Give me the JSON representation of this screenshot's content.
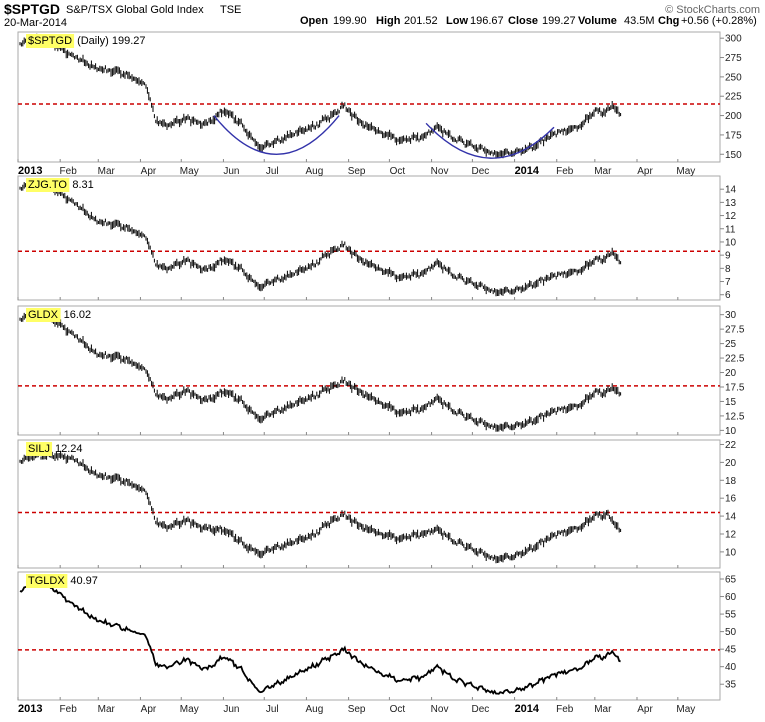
{
  "header": {
    "symbol": "$SPTGD",
    "name": "S&P/TSX Global Gold Index",
    "exchange": "TSE",
    "date": "20-Mar-2014",
    "open_label": "Open",
    "open": "199.90",
    "high_label": "High",
    "high": "201.52",
    "low_label": "Low",
    "low": "196.67",
    "close_label": "Close",
    "close": "199.27",
    "volume_label": "Volume",
    "volume": "43.5M",
    "chg_label": "Chg",
    "chg": "+0.56 (+0.28%)",
    "credit": "© StockCharts.com"
  },
  "colors": {
    "resistance": "#cc0000",
    "arc": "#3333aa",
    "highlight": "#ffff66",
    "price": "#000000"
  },
  "x_axis": {
    "labels": [
      "2013",
      "Feb",
      "Mar",
      "Apr",
      "May",
      "Jun",
      "Jul",
      "Aug",
      "Sep",
      "Oct",
      "Nov",
      "Dec",
      "2014",
      "Feb",
      "Mar",
      "Apr",
      "May"
    ],
    "bold_labels": [
      "2013",
      "2014"
    ]
  },
  "chart_data": [
    {
      "type": "line",
      "panel": "SPTGD",
      "label": "$SPTGD",
      "label_suffix": "(Daily) 199.27",
      "style": "bars",
      "y_ticks": [
        300,
        275,
        250,
        225,
        200,
        175,
        150
      ],
      "ylim": [
        140,
        308
      ],
      "resistance": 215,
      "arcs": [
        {
          "start": "2013-05-25",
          "end": "2013-08-25",
          "from": 200,
          "to": 200,
          "bottom": 150
        },
        {
          "start": "2013-10-28",
          "end": "2014-01-30",
          "from": 190,
          "to": 185,
          "bottom": 145
        }
      ],
      "x": [
        "2013-01-02",
        "2013-01-20",
        "2013-02-10",
        "2013-03-01",
        "2013-03-20",
        "2013-04-05",
        "2013-04-12",
        "2013-04-20",
        "2013-05-05",
        "2013-05-20",
        "2013-06-01",
        "2013-06-15",
        "2013-06-26",
        "2013-07-05",
        "2013-07-20",
        "2013-08-05",
        "2013-08-20",
        "2013-08-28",
        "2013-09-10",
        "2013-09-25",
        "2013-10-10",
        "2013-10-25",
        "2013-11-05",
        "2013-11-20",
        "2013-12-05",
        "2013-12-18",
        "2014-01-01",
        "2014-01-15",
        "2014-02-01",
        "2014-02-15",
        "2014-03-01",
        "2014-03-10",
        "2014-03-14",
        "2014-03-20"
      ],
      "y": [
        295,
        298,
        278,
        260,
        255,
        240,
        195,
        188,
        196,
        188,
        207,
        188,
        160,
        162,
        175,
        185,
        200,
        213,
        190,
        178,
        168,
        172,
        185,
        168,
        158,
        150,
        152,
        160,
        178,
        183,
        205,
        205,
        214,
        199
      ]
    },
    {
      "type": "line",
      "panel": "ZJG",
      "label": "ZJG.TO",
      "label_suffix": "8.31",
      "style": "bars",
      "y_ticks": [
        14,
        13,
        12,
        11,
        10,
        9,
        8,
        7,
        6
      ],
      "ylim": [
        5.6,
        15
      ],
      "resistance": 9.3,
      "x": [
        "2013-01-02",
        "2013-01-20",
        "2013-02-10",
        "2013-03-01",
        "2013-03-20",
        "2013-04-05",
        "2013-04-12",
        "2013-04-20",
        "2013-05-05",
        "2013-05-20",
        "2013-06-01",
        "2013-06-15",
        "2013-06-26",
        "2013-07-05",
        "2013-07-20",
        "2013-08-05",
        "2013-08-20",
        "2013-08-28",
        "2013-09-10",
        "2013-09-25",
        "2013-10-10",
        "2013-10-25",
        "2013-11-05",
        "2013-11-20",
        "2013-12-05",
        "2013-12-18",
        "2014-01-01",
        "2014-01-15",
        "2014-02-01",
        "2014-02-15",
        "2014-03-01",
        "2014-03-10",
        "2014-03-14",
        "2014-03-20"
      ],
      "y": [
        14.2,
        14.4,
        13.1,
        11.5,
        11.2,
        10.4,
        8.4,
        8.0,
        8.6,
        7.8,
        8.7,
        7.9,
        6.6,
        6.9,
        7.5,
        8.2,
        9.3,
        9.8,
        8.6,
        7.9,
        7.3,
        7.6,
        8.4,
        7.3,
        6.7,
        6.2,
        6.3,
        6.8,
        7.5,
        7.7,
        8.6,
        8.8,
        9.3,
        8.3
      ]
    },
    {
      "type": "line",
      "panel": "GLDX",
      "label": "GLDX",
      "label_suffix": "16.02",
      "style": "bars",
      "y_ticks": [
        30.0,
        27.5,
        25.0,
        22.5,
        20.0,
        17.5,
        15.0,
        12.5,
        10.0
      ],
      "ylim": [
        9.2,
        31.5
      ],
      "resistance": 17.7,
      "x": [
        "2013-01-02",
        "2013-01-20",
        "2013-02-10",
        "2013-03-01",
        "2013-03-20",
        "2013-04-05",
        "2013-04-12",
        "2013-04-20",
        "2013-05-05",
        "2013-05-20",
        "2013-06-01",
        "2013-06-15",
        "2013-06-26",
        "2013-07-05",
        "2013-07-20",
        "2013-08-05",
        "2013-08-20",
        "2013-08-28",
        "2013-09-10",
        "2013-09-25",
        "2013-10-10",
        "2013-10-25",
        "2013-11-05",
        "2013-11-20",
        "2013-12-05",
        "2013-12-18",
        "2014-01-01",
        "2014-01-15",
        "2014-02-01",
        "2014-02-15",
        "2014-03-01",
        "2014-03-10",
        "2014-03-14",
        "2014-03-20"
      ],
      "y": [
        29.5,
        30.0,
        26.8,
        23.0,
        22.5,
        20.5,
        16.5,
        15.5,
        16.8,
        15.0,
        16.8,
        15.0,
        12.0,
        12.7,
        14.3,
        15.8,
        17.5,
        18.6,
        16.5,
        14.7,
        13.0,
        13.7,
        15.5,
        13.0,
        11.5,
        10.5,
        10.7,
        11.7,
        13.5,
        14.0,
        16.5,
        16.6,
        17.5,
        16.0
      ]
    },
    {
      "type": "line",
      "panel": "SILJ",
      "label": "SILJ",
      "label_suffix": "12.24",
      "style": "bars",
      "y_ticks": [
        22,
        20,
        18,
        16,
        14,
        12,
        10
      ],
      "ylim": [
        8.2,
        22.5
      ],
      "resistance": 14.4,
      "x": [
        "2013-01-02",
        "2013-01-20",
        "2013-02-10",
        "2013-03-01",
        "2013-03-20",
        "2013-04-05",
        "2013-04-12",
        "2013-04-20",
        "2013-05-05",
        "2013-05-20",
        "2013-06-01",
        "2013-06-15",
        "2013-06-26",
        "2013-07-05",
        "2013-07-20",
        "2013-08-05",
        "2013-08-20",
        "2013-08-28",
        "2013-09-10",
        "2013-09-25",
        "2013-10-10",
        "2013-10-25",
        "2013-11-05",
        "2013-11-20",
        "2013-12-05",
        "2013-12-18",
        "2014-01-01",
        "2014-01-15",
        "2014-02-01",
        "2014-02-15",
        "2014-03-01",
        "2014-03-10",
        "2014-03-14",
        "2014-03-20"
      ],
      "y": [
        20.3,
        20.8,
        20.5,
        18.5,
        18.0,
        16.8,
        13.5,
        12.8,
        13.5,
        12.5,
        12.5,
        11.0,
        9.8,
        10.2,
        11.0,
        11.8,
        13.5,
        14.2,
        12.8,
        12.0,
        11.5,
        12.0,
        12.5,
        11.0,
        10.0,
        9.2,
        9.5,
        10.5,
        12.0,
        12.5,
        14.0,
        14.2,
        13.5,
        12.2
      ]
    },
    {
      "type": "line",
      "panel": "TGLDX",
      "label": "TGLDX",
      "label_suffix": "40.97",
      "style": "line",
      "y_ticks": [
        65,
        60,
        55,
        50,
        45,
        40,
        35
      ],
      "ylim": [
        30.5,
        67
      ],
      "resistance": 44.8,
      "x": [
        "2013-01-02",
        "2013-01-20",
        "2013-02-10",
        "2013-03-01",
        "2013-03-20",
        "2013-04-05",
        "2013-04-12",
        "2013-04-20",
        "2013-05-05",
        "2013-05-20",
        "2013-06-01",
        "2013-06-15",
        "2013-06-26",
        "2013-07-05",
        "2013-07-20",
        "2013-08-05",
        "2013-08-20",
        "2013-08-28",
        "2013-09-10",
        "2013-09-25",
        "2013-10-10",
        "2013-10-25",
        "2013-11-05",
        "2013-11-20",
        "2013-12-05",
        "2013-12-18",
        "2014-01-01",
        "2014-01-15",
        "2014-02-01",
        "2014-02-15",
        "2014-03-01",
        "2014-03-10",
        "2014-03-14",
        "2014-03-20"
      ],
      "y": [
        62,
        64,
        58,
        53,
        51,
        49,
        41,
        40,
        42,
        39,
        43,
        39,
        33,
        34,
        37,
        40,
        43,
        45,
        41,
        38,
        36,
        37,
        40,
        36,
        34,
        32.5,
        33,
        35,
        38,
        39,
        42.5,
        43,
        44.5,
        41
      ]
    }
  ]
}
